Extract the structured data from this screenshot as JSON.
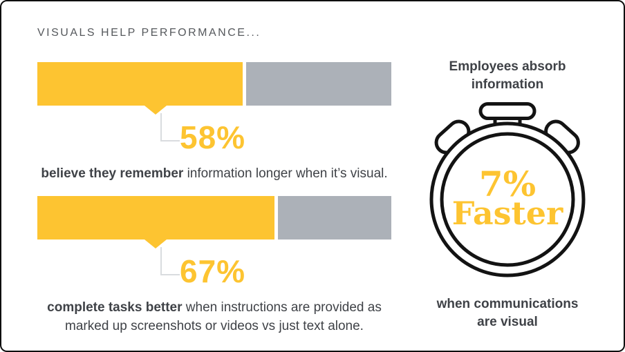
{
  "title": "VISUALS HELP PERFORMANCE...",
  "colors": {
    "accent_yellow": "#FDC431",
    "bar_gray": "#ACB1B8",
    "text_dark": "#3f4247",
    "title_gray": "#55585c",
    "connector_gray": "#D9DCDF",
    "outline_black": "#131313"
  },
  "bars": [
    {
      "value": 58,
      "pct_label": "58%",
      "caption_bold": "believe they remember",
      "caption_rest": " information longer when it’s visual."
    },
    {
      "value": 67,
      "pct_label": "67%",
      "caption_bold": "complete tasks better",
      "caption_rest": " when instructions are provided as marked up screenshots or videos vs just text alone."
    }
  ],
  "stopwatch": {
    "heading_line1": "Employees absorb",
    "heading_line2": "information",
    "pct": "7%",
    "word": "Faster",
    "footer_line1": "when communications",
    "footer_line2": "are visual"
  },
  "chart_data": {
    "type": "bar",
    "orientation": "horizontal",
    "title": "VISUALS HELP PERFORMANCE...",
    "categories": [
      "believe they remember information longer when it’s visual.",
      "complete tasks better when instructions are provided as marked up screenshots or videos vs just text alone."
    ],
    "values": [
      58,
      67
    ],
    "xlim": [
      0,
      100
    ],
    "grid": false,
    "legend": false,
    "bar_fill_color": "#FDC431",
    "bar_remainder_color": "#ACB1B8",
    "annotation": "Employees absorb information 7% Faster when communications are visual"
  }
}
